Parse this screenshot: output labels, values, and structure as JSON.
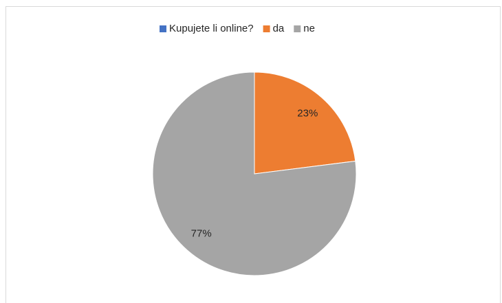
{
  "chart_data": {
    "type": "pie",
    "categories": [
      "Kupujete li online?",
      "da",
      "ne"
    ],
    "values": [
      null,
      23,
      77
    ],
    "value_labels": [
      null,
      "23%",
      "77%"
    ],
    "colors": [
      "#4472c4",
      "#ed7d31",
      "#a5a5a5"
    ],
    "legend": "top"
  }
}
